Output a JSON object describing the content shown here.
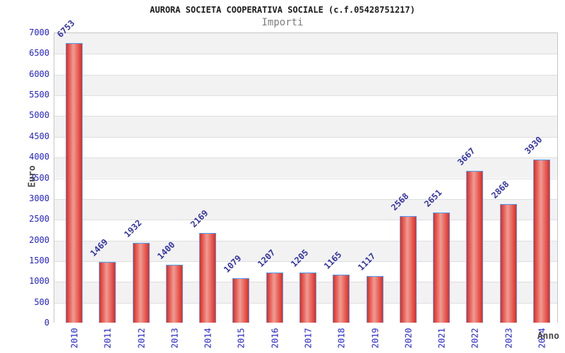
{
  "header": {
    "title": "AURORA SOCIETA COOPERATIVA SOCIALE (c.f.05428751217)",
    "subtitle": "Importi"
  },
  "chart_data": {
    "type": "bar",
    "title": "AURORA SOCIETA COOPERATIVA SOCIALE (c.f.05428751217)",
    "subtitle": "Importi",
    "xlabel": "Anno",
    "ylabel": "Euro",
    "categories": [
      "2010",
      "2011",
      "2012",
      "2013",
      "2014",
      "2015",
      "2016",
      "2017",
      "2018",
      "2019",
      "2020",
      "2021",
      "2022",
      "2023",
      "2024"
    ],
    "values": [
      6753,
      1469,
      1932,
      1400,
      2169,
      1079,
      1207,
      1205,
      1165,
      1117,
      2568,
      2651,
      3667,
      2868,
      3930
    ],
    "ylim": [
      0,
      7000
    ],
    "ytick_step": 500,
    "yticks": [
      0,
      500,
      1000,
      1500,
      2000,
      2500,
      3000,
      3500,
      4000,
      4500,
      5000,
      5500,
      6000,
      6500,
      7000
    ],
    "legend": null,
    "grid": "horizontal-bands",
    "colors": {
      "bar_edge": "#e22b20",
      "bar_center": "#ec9d96",
      "bar_border": "#4f9cf5",
      "tick_label": "#2323cc",
      "value_label": "#3434a6",
      "band_gray": "#f2f2f2",
      "band_white": "#ffffff",
      "plot_border": "#c6c6c6",
      "title": "#1c1c1c",
      "subtitle": "#7d7d7d",
      "axis_label": "#4a4a4a"
    }
  }
}
